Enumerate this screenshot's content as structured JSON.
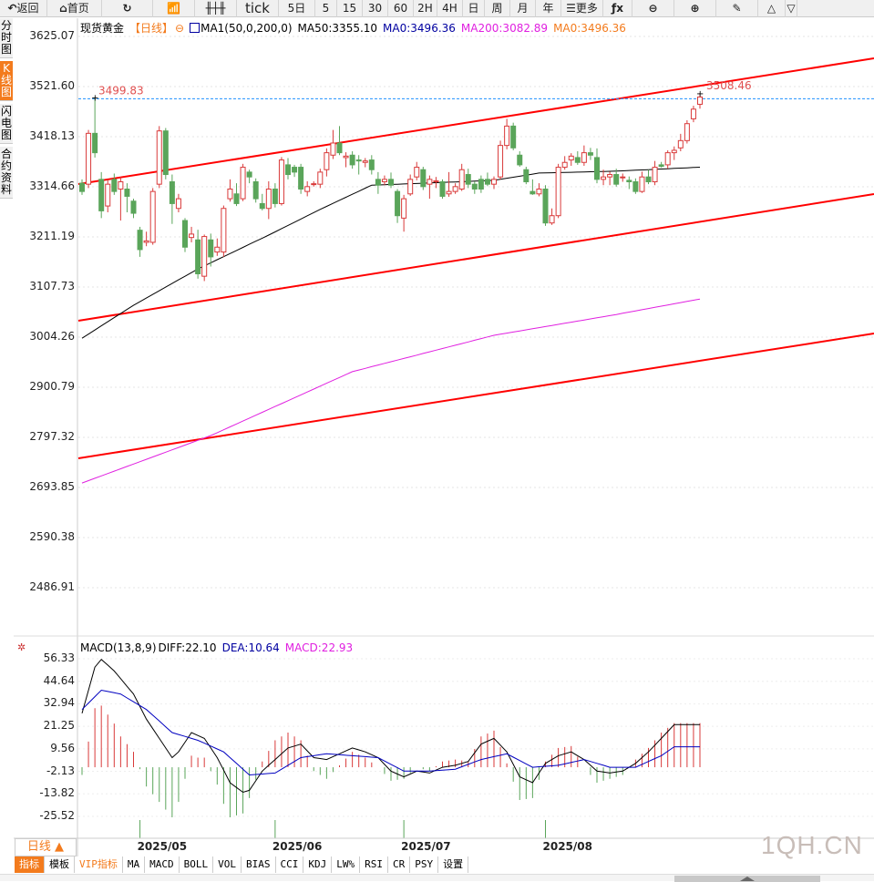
{
  "toolbar": [
    {
      "label": "返回",
      "icon": "back-arrow-icon",
      "w": 52
    },
    {
      "label": "首页",
      "icon": "home-icon",
      "w": 60
    },
    {
      "label": "",
      "icon": "refresh-icon",
      "w": 56
    },
    {
      "label": "",
      "icon": "bar-chart-icon",
      "w": 46
    },
    {
      "label": "",
      "icon": "candlestick-icon",
      "w": 46
    },
    {
      "label": "tick",
      "icon": "",
      "w": 46
    },
    {
      "label": "5日",
      "icon": "",
      "w": 40
    },
    {
      "label": "5",
      "icon": "",
      "w": 24
    },
    {
      "label": "15",
      "icon": "",
      "w": 28
    },
    {
      "label": "30",
      "icon": "",
      "w": 28
    },
    {
      "label": "60",
      "icon": "",
      "w": 28
    },
    {
      "label": "2H",
      "icon": "",
      "w": 26
    },
    {
      "label": "4H",
      "icon": "",
      "w": 28
    },
    {
      "label": "日",
      "icon": "",
      "w": 24
    },
    {
      "label": "周",
      "icon": "",
      "w": 28
    },
    {
      "label": "月",
      "icon": "",
      "w": 28
    },
    {
      "label": "年",
      "icon": "",
      "w": 28
    },
    {
      "label": "更多",
      "icon": "menu-icon",
      "w": 46
    },
    {
      "label": "",
      "icon": "function-icon",
      "w": 32
    },
    {
      "label": "",
      "icon": "zoom-out-icon",
      "w": 46
    },
    {
      "label": "",
      "icon": "zoom-in-icon",
      "w": 46
    },
    {
      "label": "",
      "icon": "pen-icon",
      "w": 46
    },
    {
      "label": "",
      "icon": "triangle-up-icon",
      "w": 30
    },
    {
      "label": "",
      "icon": "triangle-down-icon",
      "w": 13
    }
  ],
  "sidebar": [
    {
      "label": "分时图",
      "active": false
    },
    {
      "label": "K线图",
      "active": true
    },
    {
      "label": "闪电图",
      "active": false
    },
    {
      "label": "合约资料",
      "active": false
    }
  ],
  "legend": {
    "symbol": "现货黄金",
    "period": "【日线】",
    "indicator": "MA1(50,0,200,0)",
    "ma50": "MA50:3355.10",
    "ma0": "MA0:3496.36",
    "ma200": "MA200:3082.89",
    "ma0b": "MA0:3496.36"
  },
  "colors": {
    "up": "#d93a3a",
    "down": "#5aa55a",
    "ma50": "#000000",
    "ma200": "#e020e0",
    "trend": "#ff0000",
    "ma0": "#0000a0",
    "orange": "#f37b1d",
    "dash": "#1e90ff"
  },
  "price_axis": [
    "3625.07",
    "3521.60",
    "3418.13",
    "3314.66",
    "3211.19",
    "3107.73",
    "3004.26",
    "2900.79",
    "2797.32",
    "2693.85",
    "2590.38",
    "2486.91"
  ],
  "annotations": {
    "high_left": "3499.83",
    "high_right": "3508.46"
  },
  "macd": {
    "legend": {
      "name": "MACD(13,8,9)",
      "diff": "DIFF:22.10",
      "dea": "DEA:10.64",
      "macd": "MACD:22.93"
    },
    "axis": [
      "56.33",
      "44.64",
      "32.94",
      "21.25",
      "9.56",
      "-2.13",
      "-13.82",
      "-25.52"
    ],
    "diff": [
      [
        0,
        28
      ],
      [
        2,
        52
      ],
      [
        3,
        56
      ],
      [
        5,
        50
      ],
      [
        8,
        38
      ],
      [
        10,
        25
      ],
      [
        12,
        15
      ],
      [
        14,
        5
      ],
      [
        15,
        8
      ],
      [
        17,
        18
      ],
      [
        19,
        15
      ],
      [
        21,
        5
      ],
      [
        23,
        -8
      ],
      [
        25,
        -13
      ],
      [
        26,
        -12
      ],
      [
        28,
        -2
      ],
      [
        30,
        4
      ],
      [
        32,
        10
      ],
      [
        34,
        12
      ],
      [
        36,
        5
      ],
      [
        38,
        4
      ],
      [
        40,
        7
      ],
      [
        42,
        10
      ],
      [
        44,
        8
      ],
      [
        46,
        5
      ],
      [
        48,
        -2
      ],
      [
        50,
        -5
      ],
      [
        52,
        -2
      ],
      [
        54,
        -3
      ],
      [
        56,
        0
      ],
      [
        58,
        1
      ],
      [
        60,
        3
      ],
      [
        62,
        12
      ],
      [
        64,
        15
      ],
      [
        66,
        8
      ],
      [
        68,
        -5
      ],
      [
        70,
        -8
      ],
      [
        72,
        2
      ],
      [
        74,
        6
      ],
      [
        76,
        8
      ],
      [
        78,
        4
      ],
      [
        80,
        -2
      ],
      [
        82,
        -3
      ],
      [
        84,
        -2
      ],
      [
        86,
        2
      ],
      [
        88,
        8
      ],
      [
        90,
        15
      ],
      [
        92,
        22.1
      ]
    ],
    "dea": [
      [
        0,
        30
      ],
      [
        3,
        40
      ],
      [
        6,
        38
      ],
      [
        10,
        30
      ],
      [
        14,
        18
      ],
      [
        18,
        14
      ],
      [
        22,
        8
      ],
      [
        26,
        -4
      ],
      [
        30,
        -3
      ],
      [
        34,
        5
      ],
      [
        38,
        7
      ],
      [
        42,
        6
      ],
      [
        46,
        5
      ],
      [
        50,
        -2
      ],
      [
        54,
        -2
      ],
      [
        58,
        -1
      ],
      [
        62,
        4
      ],
      [
        66,
        7
      ],
      [
        70,
        0
      ],
      [
        74,
        1
      ],
      [
        78,
        4
      ],
      [
        82,
        0
      ],
      [
        86,
        0
      ],
      [
        90,
        6
      ],
      [
        92,
        10.64
      ]
    ]
  },
  "chart_data": {
    "type": "candlestick",
    "candles_ohlc": [
      [
        3322,
        3330,
        3298,
        3305
      ],
      [
        3320,
        3432,
        3312,
        3425
      ],
      [
        3425,
        3500,
        3375,
        3385
      ],
      [
        3330,
        3345,
        3250,
        3265
      ],
      [
        3275,
        3330,
        3262,
        3320
      ],
      [
        3330,
        3342,
        3298,
        3305
      ],
      [
        3310,
        3335,
        3245,
        3325
      ],
      [
        3310,
        3322,
        3262,
        3295
      ],
      [
        3285,
        3290,
        3250,
        3260
      ],
      [
        3225,
        3232,
        3170,
        3185
      ],
      [
        3200,
        3222,
        3192,
        3203
      ],
      [
        3200,
        3312,
        3195,
        3305
      ],
      [
        3320,
        3440,
        3312,
        3430
      ],
      [
        3430,
        3436,
        3330,
        3340
      ],
      [
        3325,
        3340,
        3238,
        3280
      ],
      [
        3270,
        3300,
        3262,
        3290
      ],
      [
        3245,
        3250,
        3180,
        3190
      ],
      [
        3210,
        3232,
        3200,
        3217
      ],
      [
        3205,
        3226,
        3125,
        3135
      ],
      [
        3130,
        3216,
        3120,
        3212
      ],
      [
        3205,
        3218,
        3150,
        3170
      ],
      [
        3180,
        3208,
        3172,
        3190
      ],
      [
        3180,
        3276,
        3170,
        3270
      ],
      [
        3290,
        3330,
        3284,
        3310
      ],
      [
        3300,
        3322,
        3275,
        3280
      ],
      [
        3290,
        3362,
        3285,
        3355
      ],
      [
        3345,
        3350,
        3322,
        3335
      ],
      [
        3325,
        3332,
        3282,
        3290
      ],
      [
        3280,
        3300,
        3266,
        3270
      ],
      [
        3270,
        3326,
        3248,
        3310
      ],
      [
        3310,
        3322,
        3272,
        3280
      ],
      [
        3280,
        3376,
        3276,
        3370
      ],
      [
        3360,
        3374,
        3330,
        3340
      ],
      [
        3355,
        3360,
        3335,
        3345
      ],
      [
        3355,
        3362,
        3300,
        3310
      ],
      [
        3305,
        3326,
        3295,
        3315
      ],
      [
        3320,
        3326,
        3315,
        3321
      ],
      [
        3320,
        3352,
        3312,
        3345
      ],
      [
        3350,
        3394,
        3336,
        3385
      ],
      [
        3380,
        3432,
        3372,
        3405
      ],
      [
        3405,
        3440,
        3380,
        3385
      ],
      [
        3375,
        3386,
        3355,
        3378
      ],
      [
        3380,
        3388,
        3352,
        3360
      ],
      [
        3370,
        3380,
        3340,
        3368
      ],
      [
        3365,
        3374,
        3355,
        3368
      ],
      [
        3370,
        3380,
        3340,
        3350
      ],
      [
        3330,
        3345,
        3300,
        3318
      ],
      [
        3325,
        3338,
        3318,
        3330
      ],
      [
        3330,
        3344,
        3312,
        3318
      ],
      [
        3305,
        3310,
        3240,
        3255
      ],
      [
        3250,
        3298,
        3222,
        3290
      ],
      [
        3300,
        3340,
        3296,
        3330
      ],
      [
        3335,
        3366,
        3328,
        3355
      ],
      [
        3350,
        3356,
        3308,
        3315
      ],
      [
        3320,
        3338,
        3290,
        3330
      ],
      [
        3325,
        3335,
        3312,
        3327
      ],
      [
        3325,
        3330,
        3290,
        3295
      ],
      [
        3300,
        3345,
        3294,
        3305
      ],
      [
        3305,
        3322,
        3300,
        3315
      ],
      [
        3310,
        3362,
        3306,
        3350
      ],
      [
        3340,
        3352,
        3312,
        3320
      ],
      [
        3320,
        3326,
        3300,
        3310
      ],
      [
        3330,
        3338,
        3302,
        3310
      ],
      [
        3330,
        3344,
        3316,
        3320
      ],
      [
        3320,
        3336,
        3310,
        3330
      ],
      [
        3335,
        3410,
        3330,
        3400
      ],
      [
        3400,
        3455,
        3392,
        3440
      ],
      [
        3440,
        3447,
        3390,
        3395
      ],
      [
        3380,
        3388,
        3356,
        3360
      ],
      [
        3350,
        3356,
        3320,
        3325
      ],
      [
        3305,
        3330,
        3298,
        3300
      ],
      [
        3300,
        3322,
        3295,
        3310
      ],
      [
        3310,
        3318,
        3234,
        3240
      ],
      [
        3240,
        3270,
        3236,
        3255
      ],
      [
        3255,
        3362,
        3250,
        3355
      ],
      [
        3355,
        3378,
        3350,
        3365
      ],
      [
        3370,
        3384,
        3358,
        3378
      ],
      [
        3375,
        3388,
        3360,
        3365
      ],
      [
        3365,
        3400,
        3358,
        3385
      ],
      [
        3385,
        3395,
        3370,
        3380
      ],
      [
        3375,
        3394,
        3322,
        3330
      ],
      [
        3330,
        3350,
        3318,
        3335
      ],
      [
        3335,
        3346,
        3318,
        3340
      ],
      [
        3340,
        3352,
        3315,
        3320
      ],
      [
        3335,
        3342,
        3325,
        3335
      ],
      [
        3328,
        3336,
        3310,
        3325
      ],
      [
        3325,
        3332,
        3300,
        3305
      ],
      [
        3305,
        3346,
        3302,
        3335
      ],
      [
        3335,
        3350,
        3320,
        3325
      ],
      [
        3325,
        3368,
        3318,
        3355
      ],
      [
        3360,
        3366,
        3354,
        3357
      ],
      [
        3360,
        3390,
        3352,
        3385
      ],
      [
        3385,
        3398,
        3370,
        3390
      ],
      [
        3395,
        3424,
        3388,
        3410
      ],
      [
        3410,
        3452,
        3404,
        3445
      ],
      [
        3455,
        3482,
        3448,
        3475
      ],
      [
        3485,
        3508.46,
        3476,
        3500
      ]
    ],
    "ma50": [
      [
        0,
        3002
      ],
      [
        8,
        3070
      ],
      [
        18,
        3145
      ],
      [
        29,
        3215
      ],
      [
        37,
        3268
      ],
      [
        45,
        3318
      ],
      [
        53,
        3322
      ],
      [
        64,
        3328
      ],
      [
        71,
        3343
      ],
      [
        83,
        3347
      ],
      [
        96,
        3355.1
      ]
    ],
    "ma200": [
      [
        0,
        2703
      ],
      [
        20,
        2801
      ],
      [
        42,
        2933
      ],
      [
        64,
        3008
      ],
      [
        83,
        3051
      ],
      [
        96,
        3082.89
      ]
    ],
    "ma0": 3496.36,
    "x_ticks": [
      {
        "label": "2025/05",
        "index": 9
      },
      {
        "label": "2025/06",
        "index": 30
      },
      {
        "label": "2025/07",
        "index": 50
      },
      {
        "label": "2025/08",
        "index": 72
      }
    ],
    "ylim": [
      2486.91,
      3625.07
    ]
  },
  "bottom": {
    "period_button": "日线 ▲",
    "tabs": [
      {
        "label": "指标",
        "active": true
      },
      {
        "label": "模板"
      },
      {
        "label": "VIP指标",
        "vip": true
      },
      {
        "label": "MA"
      },
      {
        "label": "MACD"
      },
      {
        "label": "BOLL"
      },
      {
        "label": "VOL"
      },
      {
        "label": "BIAS"
      },
      {
        "label": "CCI"
      },
      {
        "label": "KDJ"
      },
      {
        "label": "LW%"
      },
      {
        "label": "RSI"
      },
      {
        "label": "CR"
      },
      {
        "label": "PSY"
      },
      {
        "label": "设置"
      }
    ],
    "watermark": "1QH.CN"
  }
}
